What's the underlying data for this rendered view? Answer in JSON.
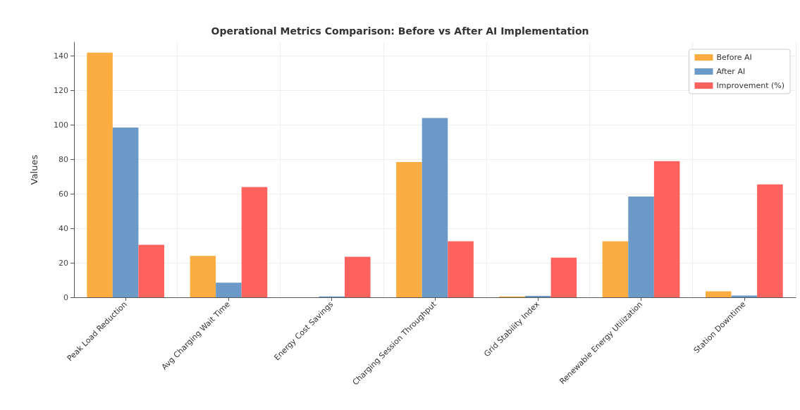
{
  "chart_data": {
    "type": "bar",
    "title": "Operational Metrics Comparison: Before vs After AI Implementation",
    "ylabel": "Values",
    "categories": [
      "Peak Load Reduction",
      "Avg Charging Wait Time",
      "Energy Cost Savings",
      "Charging Session Throughput",
      "Grid Stability Index",
      "Renewable Energy Utilization",
      "Station Downtime"
    ],
    "series": [
      {
        "name": "Before AI",
        "color": "#fbad41",
        "values": [
          142,
          24,
          0,
          78.5,
          0.5,
          32.5,
          3.5
        ]
      },
      {
        "name": "After AI",
        "color": "#6b9ac8",
        "values": [
          98.5,
          8.5,
          0.5,
          104,
          0.8,
          58.5,
          1
        ]
      },
      {
        "name": "Improvement (%)",
        "color": "#fd625e",
        "values": [
          30.5,
          64,
          23.5,
          32.5,
          23,
          79,
          65.5
        ]
      }
    ],
    "ylim": [
      0,
      148
    ],
    "yticks": [
      0,
      20,
      40,
      60,
      80,
      100,
      120,
      140
    ],
    "grid": true,
    "legend": "top right"
  }
}
